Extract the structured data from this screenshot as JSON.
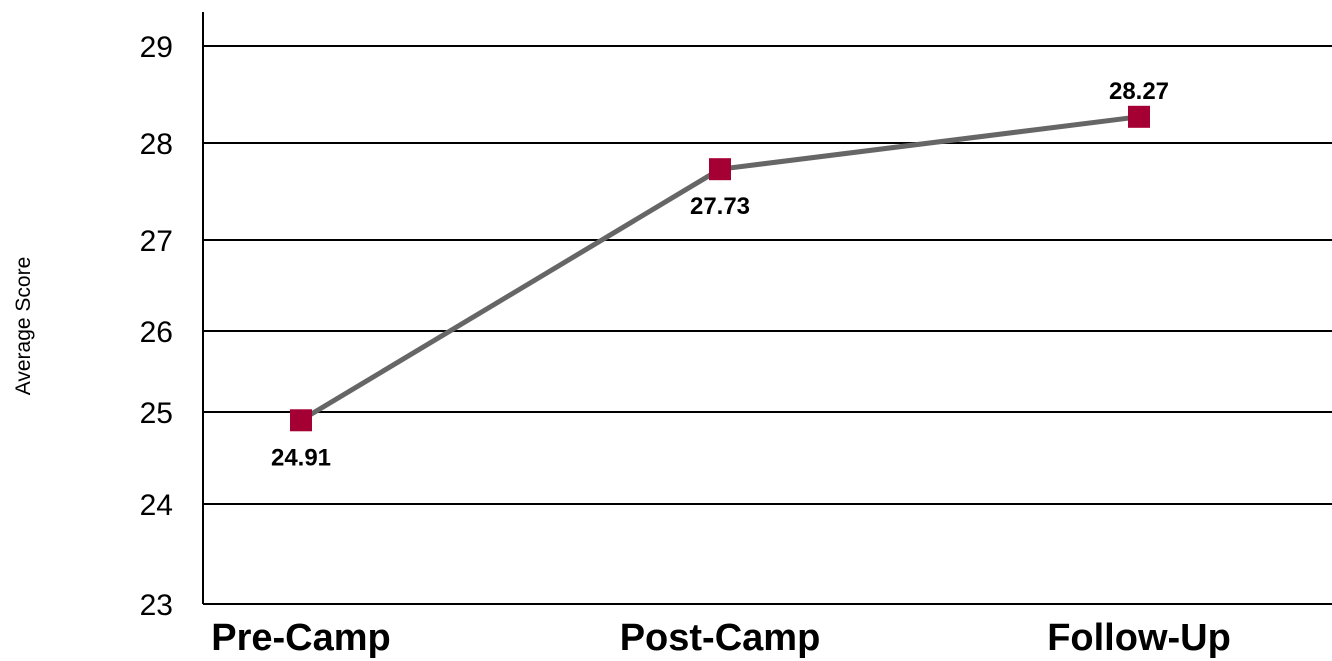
{
  "chart_data": {
    "type": "line",
    "title": "",
    "xlabel": "",
    "ylabel": "Average Score",
    "categories": [
      "Pre-Camp",
      "Post-Camp",
      "Follow-Up"
    ],
    "series": [
      {
        "values": [
          24.91,
          27.73,
          28.27
        ],
        "data_labels": [
          "24.91",
          "27.73",
          "28.27"
        ],
        "data_label_positions": [
          "below",
          "below",
          "above"
        ]
      }
    ],
    "y_ticks": [
      23,
      24,
      25,
      26,
      27,
      28,
      29
    ],
    "y_tick_labels": [
      "23",
      "24",
      "25",
      "26",
      "27",
      "28",
      "29"
    ],
    "ylim": [
      23,
      29.1
    ],
    "grid": true,
    "legend": "none",
    "colors": {
      "line": "#666666",
      "marker": "#A50034",
      "grid": "#000000"
    }
  }
}
